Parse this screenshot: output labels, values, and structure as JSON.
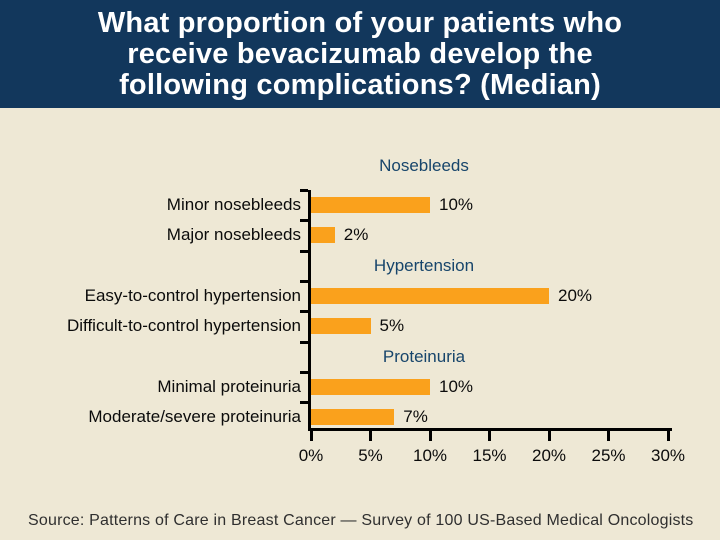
{
  "slide": {
    "title": {
      "lines": [
        "What proportion of your patients who",
        "receive bevacizumab develop the",
        "following complications? (Median)"
      ],
      "bg_color": "#12375C",
      "text_color": "#FFFFFF"
    },
    "background_color": "#EEE8D5",
    "source": "Source: Patterns of Care in Breast Cancer — Survey of 100 US-Based Medical Oncologists"
  },
  "chart_data": {
    "type": "bar",
    "orientation": "horizontal",
    "title": "",
    "xlabel": "",
    "ylabel": "",
    "xlim": [
      0,
      30
    ],
    "grid": false,
    "legend": null,
    "bar_color": "#FAA11C",
    "group_header_color": "#17456B",
    "groups": [
      {
        "header": "Nosebleeds",
        "items": [
          {
            "label": "Minor nosebleeds",
            "value": 10,
            "value_label": "10%"
          },
          {
            "label": "Major nosebleeds",
            "value": 2,
            "value_label": "2%"
          }
        ]
      },
      {
        "header": "Hypertension",
        "items": [
          {
            "label": "Easy-to-control hypertension",
            "value": 20,
            "value_label": "20%"
          },
          {
            "label": "Difficult-to-control hypertension",
            "value": 5,
            "value_label": "5%"
          }
        ]
      },
      {
        "header": "Proteinuria",
        "items": [
          {
            "label": "Minimal proteinuria",
            "value": 10,
            "value_label": "10%"
          },
          {
            "label": "Moderate/severe proteinuria",
            "value": 7,
            "value_label": "7%"
          }
        ]
      }
    ],
    "x_axis": {
      "tick_labels": [
        "0%",
        "5%",
        "10%",
        "15%",
        "20%",
        "25%",
        "30%"
      ],
      "tick_values": [
        0,
        5,
        10,
        15,
        20,
        25,
        30
      ]
    }
  }
}
